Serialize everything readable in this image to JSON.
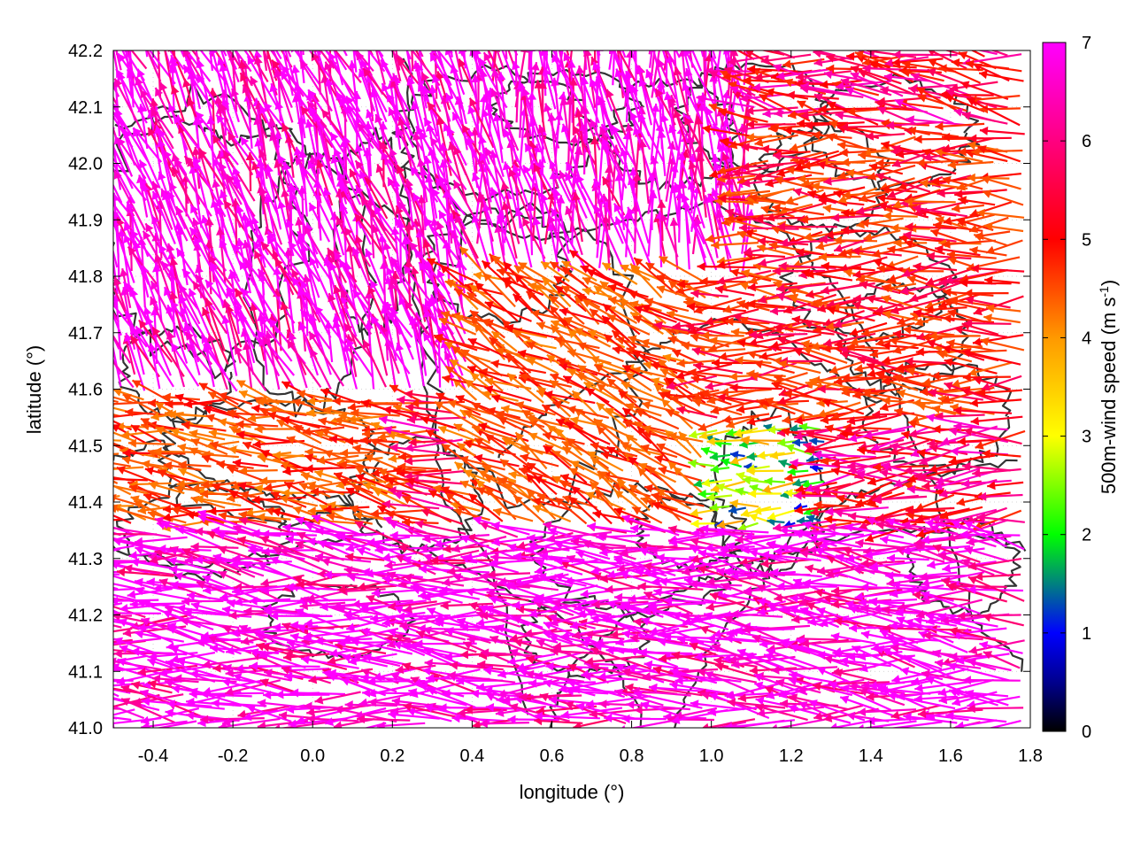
{
  "chart_data": {
    "type": "vector-field",
    "xlabel": "longitude (°)",
    "ylabel": "latitude (°)",
    "xlim": [
      -0.5,
      1.8
    ],
    "ylim": [
      41.0,
      42.2
    ],
    "x_ticks": [
      "-0.4",
      "-0.2",
      "0.0",
      "0.2",
      "0.4",
      "0.6",
      "0.8",
      "1.0",
      "1.2",
      "1.4",
      "1.6",
      "1.8"
    ],
    "x_tick_values": [
      -0.4,
      -0.2,
      0.0,
      0.2,
      0.4,
      0.6,
      0.8,
      1.0,
      1.2,
      1.4,
      1.6,
      1.8
    ],
    "y_ticks": [
      "41.0",
      "41.1",
      "41.2",
      "41.3",
      "41.4",
      "41.5",
      "41.6",
      "41.7",
      "41.8",
      "41.9",
      "42.0",
      "42.1",
      "42.2"
    ],
    "y_tick_values": [
      41.0,
      41.1,
      41.2,
      41.3,
      41.4,
      41.5,
      41.6,
      41.7,
      41.8,
      41.9,
      42.0,
      42.1,
      42.2
    ],
    "grid": true,
    "colorbar": {
      "label": "500m-wind speed (m s",
      "label_sup": "-1",
      "label_end": ")",
      "range": [
        0,
        7
      ],
      "ticks": [
        "0",
        "1",
        "2",
        "3",
        "4",
        "5",
        "6",
        "7"
      ],
      "colors": [
        "#000000",
        "#0000ff",
        "#00ff00",
        "#ffff00",
        "#ff9900",
        "#ff0000",
        "#ff00ff"
      ]
    },
    "vectors_description": "Wind vectors at 500 m; strong (about 7 m/s) flow from the east-southeast in the south, converging northwestward flow in the northwest, weaker variable winds in the center-east",
    "regimes": [
      {
        "lon_range": [
          -0.5,
          1.8
        ],
        "lat_range": [
          41.0,
          41.35
        ],
        "direction_to_deg": 175,
        "speed": 7
      },
      {
        "lon_range": [
          -0.5,
          0.3
        ],
        "lat_range": [
          41.35,
          41.6
        ],
        "direction_to_deg": 170,
        "speed": 5
      },
      {
        "lon_range": [
          -0.5,
          0.4
        ],
        "lat_range": [
          41.6,
          42.2
        ],
        "direction_to_deg": 110,
        "speed": 7
      },
      {
        "lon_range": [
          0.4,
          1.1
        ],
        "lat_range": [
          41.8,
          42.2
        ],
        "direction_to_deg": 100,
        "speed": 7
      },
      {
        "lon_range": [
          0.4,
          1.0
        ],
        "lat_range": [
          41.35,
          41.8
        ],
        "direction_to_deg": 150,
        "speed": 5
      },
      {
        "lon_range": [
          0.6,
          1.3
        ],
        "lat_range": [
          41.3,
          41.55
        ],
        "direction_to_deg": 180,
        "speed": 2.5
      },
      {
        "lon_range": [
          1.0,
          1.8
        ],
        "lat_range": [
          41.55,
          42.05
        ],
        "direction_to_deg": 180,
        "speed": 5.5
      },
      {
        "lon_range": [
          1.1,
          1.8
        ],
        "lat_range": [
          41.35,
          41.55
        ],
        "direction_to_deg": 185,
        "speed": 6
      }
    ]
  }
}
